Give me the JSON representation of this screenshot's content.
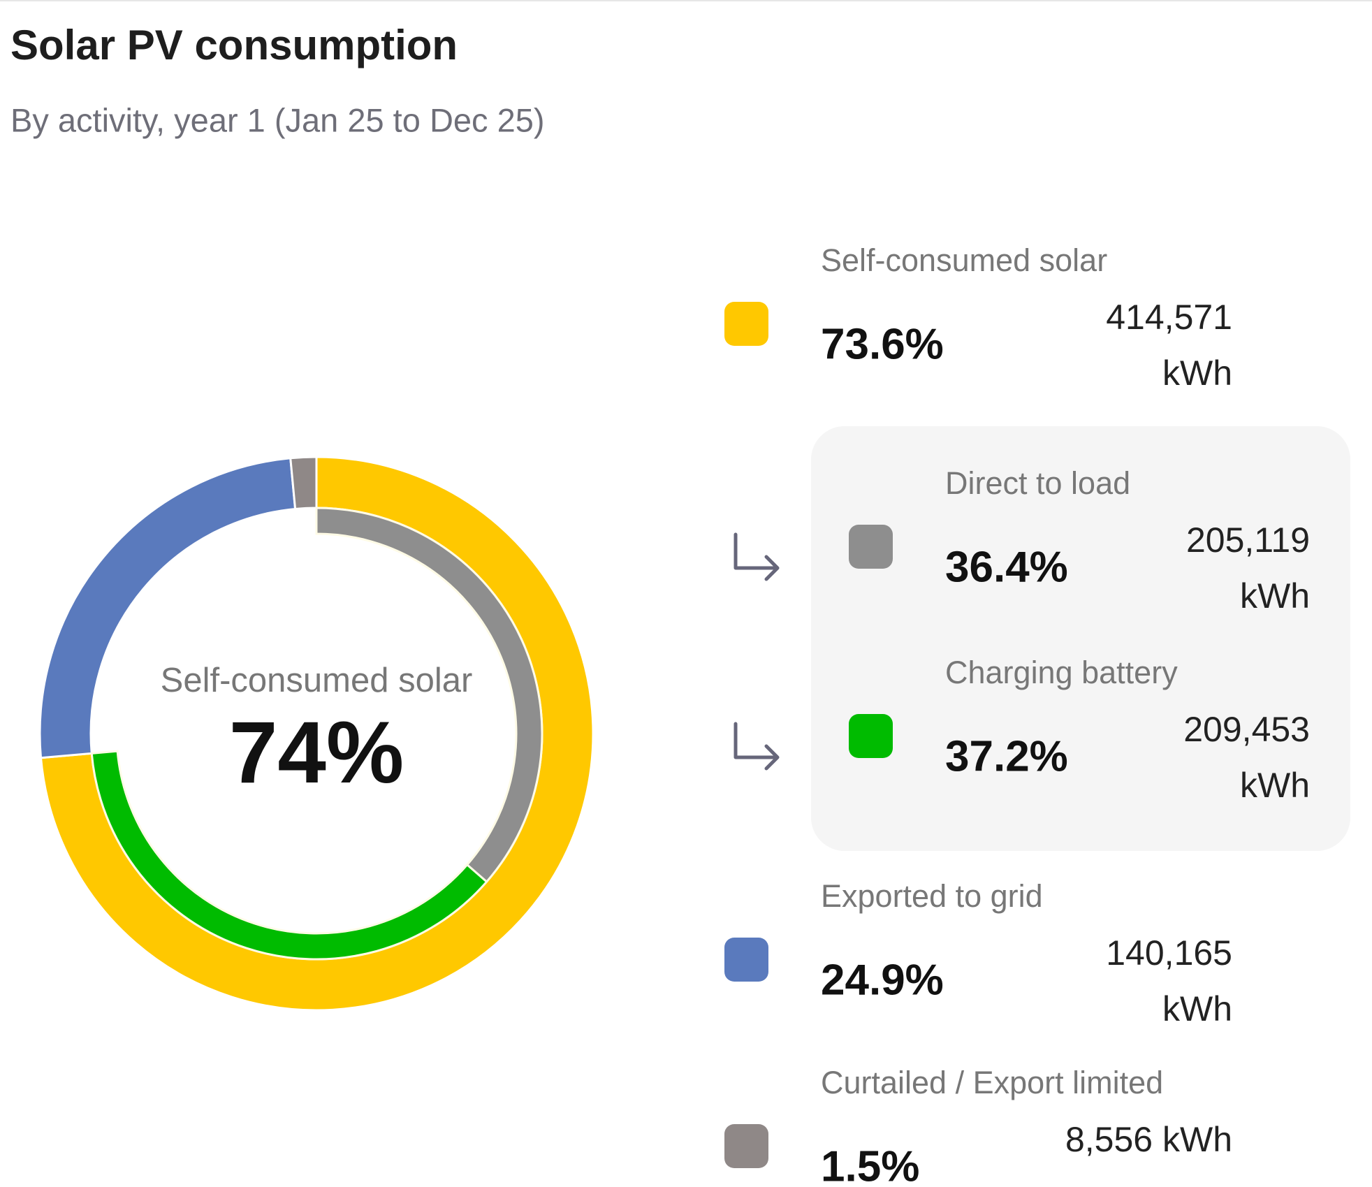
{
  "chart_data": {
    "type": "donut",
    "title": "Solar PV consumption",
    "subtitle": "By activity, year 1 (Jan 25 to Dec 25)",
    "center_label": "Self-consumed solar",
    "center_value_label": "74%",
    "series": [
      {
        "name": "Self-consumed solar",
        "color": "#ffc800",
        "value": 73.6,
        "value_label": "73.6%",
        "energy_label": "414,571 kWh",
        "children": [
          {
            "name": "Direct to load",
            "color": "#8e8e8e",
            "value": 36.4,
            "value_label": "36.4%",
            "energy_label": "205,119 kWh"
          },
          {
            "name": "Charging battery",
            "color": "#00bb00",
            "value": 37.2,
            "value_label": "37.2%",
            "energy_label": "209,453 kWh"
          }
        ]
      },
      {
        "name": "Exported to grid",
        "color": "#5a7abd",
        "value": 24.9,
        "value_label": "24.9%",
        "energy_label": "140,165 kWh"
      },
      {
        "name": "Curtailed / Export limited",
        "color": "#8f8887",
        "value": 1.5,
        "value_label": "1.5%",
        "energy_label": "8,556 kWh"
      }
    ]
  }
}
